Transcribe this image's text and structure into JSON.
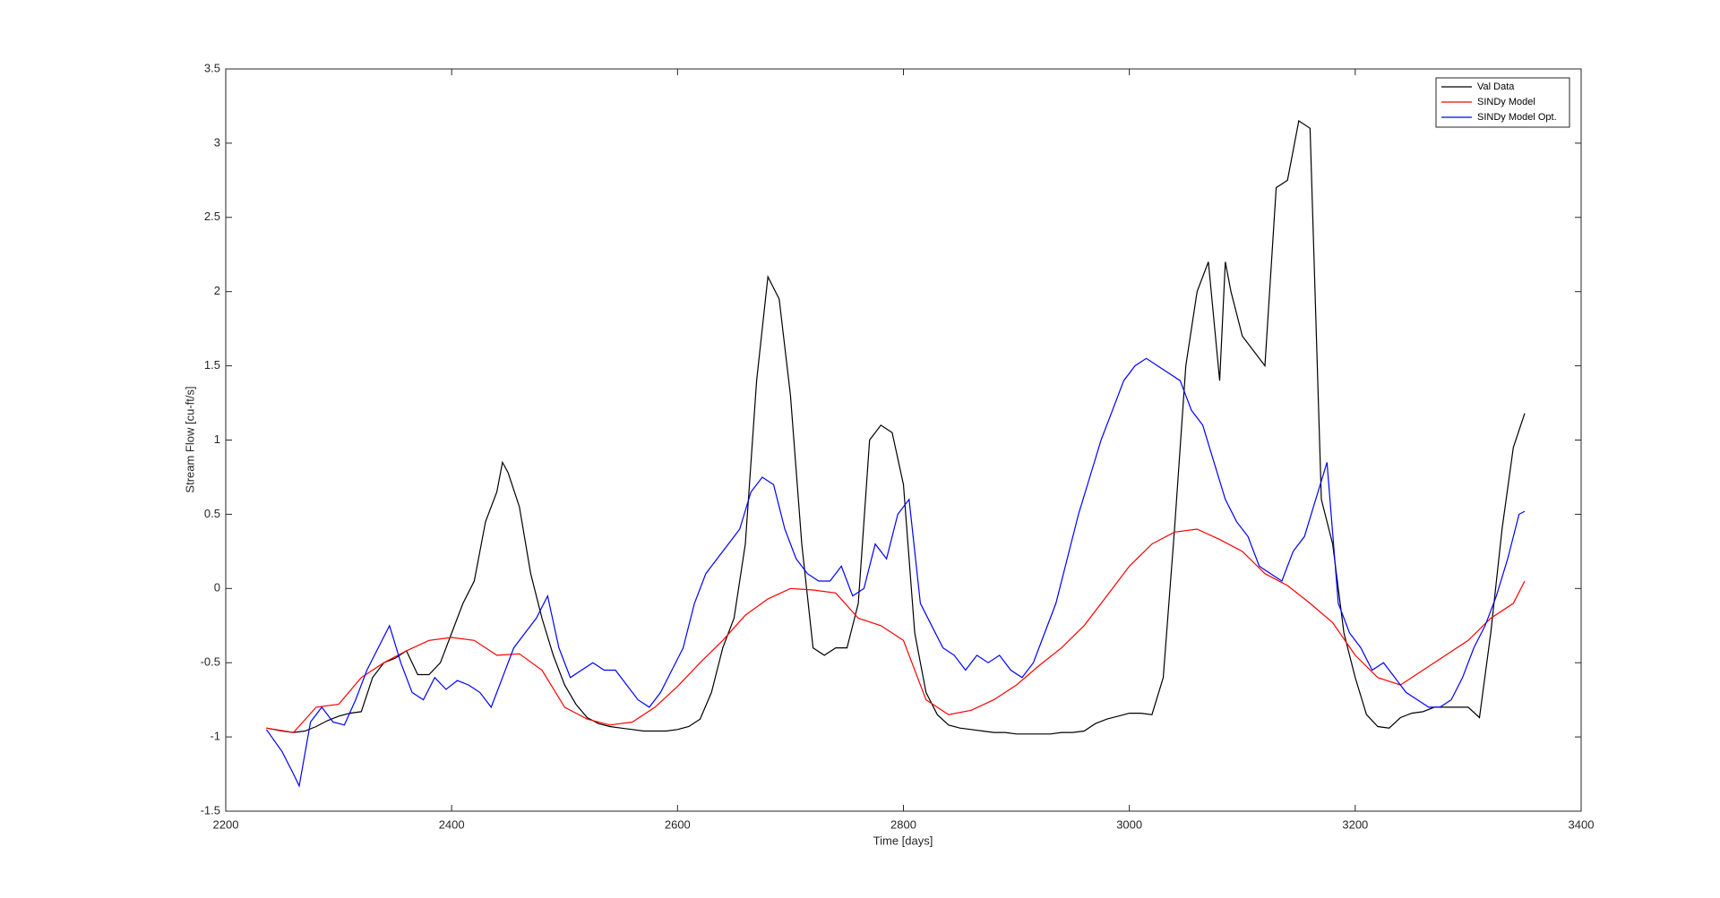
{
  "chart_data": {
    "type": "line",
    "xlabel": "Time [days]",
    "ylabel": "Stream Flow [cu-ft/s]",
    "xlim": [
      2200,
      3400
    ],
    "xticks": [
      2200,
      2400,
      2600,
      2800,
      3000,
      3200,
      3400
    ],
    "ylim": [
      -1.5,
      3.5
    ],
    "yticks": [
      -1.5,
      -1,
      -0.5,
      0,
      0.5,
      1,
      1.5,
      2,
      2.5,
      3,
      3.5
    ],
    "legend": "upper right",
    "grid": false,
    "series": [
      {
        "name": "Val Data",
        "color": "#000000",
        "x": [
          2236,
          2250,
          2260,
          2270,
          2280,
          2290,
          2300,
          2310,
          2320,
          2330,
          2340,
          2350,
          2360,
          2370,
          2380,
          2390,
          2400,
          2410,
          2420,
          2430,
          2440,
          2445,
          2450,
          2460,
          2470,
          2480,
          2490,
          2500,
          2510,
          2520,
          2530,
          2540,
          2550,
          2560,
          2570,
          2580,
          2590,
          2600,
          2610,
          2620,
          2630,
          2640,
          2650,
          2660,
          2670,
          2680,
          2690,
          2700,
          2710,
          2720,
          2730,
          2740,
          2750,
          2760,
          2770,
          2780,
          2790,
          2800,
          2810,
          2820,
          2830,
          2840,
          2850,
          2860,
          2870,
          2880,
          2890,
          2900,
          2910,
          2920,
          2930,
          2940,
          2950,
          2960,
          2970,
          2980,
          2990,
          3000,
          3010,
          3020,
          3030,
          3040,
          3050,
          3060,
          3070,
          3080,
          3085,
          3090,
          3100,
          3110,
          3120,
          3130,
          3140,
          3150,
          3160,
          3170,
          3180,
          3190,
          3200,
          3210,
          3220,
          3230,
          3240,
          3250,
          3260,
          3270,
          3280,
          3290,
          3300,
          3310,
          3320,
          3330,
          3340,
          3350
        ],
        "values": [
          -0.94,
          -0.96,
          -0.97,
          -0.96,
          -0.93,
          -0.89,
          -0.86,
          -0.84,
          -0.83,
          -0.6,
          -0.5,
          -0.47,
          -0.42,
          -0.58,
          -0.58,
          -0.5,
          -0.3,
          -0.1,
          0.05,
          0.45,
          0.65,
          0.85,
          0.78,
          0.55,
          0.1,
          -0.2,
          -0.45,
          -0.65,
          -0.78,
          -0.87,
          -0.91,
          -0.93,
          -0.94,
          -0.95,
          -0.96,
          -0.96,
          -0.96,
          -0.95,
          -0.93,
          -0.88,
          -0.7,
          -0.4,
          -0.2,
          0.3,
          1.4,
          2.1,
          1.95,
          1.3,
          0.3,
          -0.4,
          -0.45,
          -0.4,
          -0.4,
          -0.1,
          1.0,
          1.1,
          1.05,
          0.7,
          -0.3,
          -0.7,
          -0.85,
          -0.92,
          -0.94,
          -0.95,
          -0.96,
          -0.97,
          -0.97,
          -0.98,
          -0.98,
          -0.98,
          -0.98,
          -0.97,
          -0.97,
          -0.96,
          -0.91,
          -0.88,
          -0.86,
          -0.84,
          -0.84,
          -0.85,
          -0.6,
          0.4,
          1.5,
          2.0,
          2.2,
          1.4,
          2.2,
          2.0,
          1.7,
          1.6,
          1.5,
          2.7,
          2.75,
          3.15,
          3.1,
          0.6,
          0.3,
          -0.3,
          -0.6,
          -0.85,
          -0.93,
          -0.94,
          -0.87,
          -0.84,
          -0.83,
          -0.8,
          -0.8,
          -0.8,
          -0.8,
          -0.87,
          -0.3,
          0.4,
          0.95,
          1.18
        ]
      },
      {
        "name": "SINDy Model",
        "color": "#ff0000",
        "x": [
          2236,
          2260,
          2280,
          2300,
          2320,
          2340,
          2360,
          2380,
          2400,
          2420,
          2440,
          2460,
          2480,
          2500,
          2520,
          2540,
          2560,
          2580,
          2600,
          2620,
          2640,
          2660,
          2680,
          2700,
          2720,
          2740,
          2760,
          2780,
          2800,
          2820,
          2840,
          2860,
          2880,
          2900,
          2920,
          2940,
          2960,
          2980,
          3000,
          3020,
          3040,
          3060,
          3080,
          3100,
          3120,
          3140,
          3160,
          3180,
          3200,
          3220,
          3240,
          3260,
          3280,
          3300,
          3320,
          3340,
          3350
        ],
        "values": [
          -0.94,
          -0.97,
          -0.8,
          -0.78,
          -0.6,
          -0.5,
          -0.42,
          -0.35,
          -0.33,
          -0.35,
          -0.45,
          -0.44,
          -0.55,
          -0.8,
          -0.88,
          -0.92,
          -0.9,
          -0.8,
          -0.66,
          -0.5,
          -0.35,
          -0.18,
          -0.07,
          0.0,
          -0.01,
          -0.03,
          -0.2,
          -0.25,
          -0.35,
          -0.75,
          -0.85,
          -0.82,
          -0.75,
          -0.65,
          -0.52,
          -0.4,
          -0.25,
          -0.05,
          0.15,
          0.3,
          0.38,
          0.4,
          0.33,
          0.25,
          0.1,
          0.02,
          -0.1,
          -0.23,
          -0.45,
          -0.6,
          -0.65,
          -0.55,
          -0.45,
          -0.35,
          -0.2,
          -0.1,
          0.05
        ]
      },
      {
        "name": "SINDy Model Opt.",
        "color": "#0000ff",
        "x": [
          2236,
          2250,
          2260,
          2265,
          2275,
          2285,
          2295,
          2305,
          2315,
          2325,
          2335,
          2345,
          2355,
          2365,
          2375,
          2385,
          2395,
          2405,
          2415,
          2425,
          2435,
          2445,
          2455,
          2465,
          2475,
          2485,
          2495,
          2505,
          2515,
          2525,
          2535,
          2545,
          2555,
          2565,
          2575,
          2585,
          2595,
          2605,
          2615,
          2625,
          2635,
          2645,
          2655,
          2665,
          2675,
          2685,
          2695,
          2705,
          2715,
          2725,
          2735,
          2745,
          2755,
          2765,
          2775,
          2785,
          2795,
          2805,
          2815,
          2825,
          2835,
          2845,
          2855,
          2865,
          2875,
          2885,
          2895,
          2905,
          2915,
          2925,
          2935,
          2945,
          2955,
          2965,
          2975,
          2985,
          2995,
          3005,
          3015,
          3025,
          3035,
          3045,
          3055,
          3065,
          3075,
          3085,
          3095,
          3105,
          3115,
          3125,
          3135,
          3145,
          3155,
          3165,
          3175,
          3185,
          3195,
          3205,
          3215,
          3225,
          3235,
          3245,
          3255,
          3265,
          3275,
          3285,
          3295,
          3305,
          3315,
          3325,
          3335,
          3345,
          3350
        ],
        "values": [
          -0.95,
          -1.1,
          -1.25,
          -1.33,
          -0.9,
          -0.8,
          -0.9,
          -0.92,
          -0.75,
          -0.55,
          -0.4,
          -0.25,
          -0.5,
          -0.7,
          -0.75,
          -0.6,
          -0.68,
          -0.62,
          -0.65,
          -0.7,
          -0.8,
          -0.6,
          -0.4,
          -0.3,
          -0.2,
          -0.05,
          -0.4,
          -0.6,
          -0.55,
          -0.5,
          -0.55,
          -0.55,
          -0.65,
          -0.75,
          -0.8,
          -0.7,
          -0.55,
          -0.4,
          -0.1,
          0.1,
          0.2,
          0.3,
          0.4,
          0.65,
          0.75,
          0.7,
          0.4,
          0.2,
          0.1,
          0.05,
          0.05,
          0.15,
          -0.05,
          0.0,
          0.3,
          0.2,
          0.5,
          0.6,
          -0.1,
          -0.25,
          -0.4,
          -0.45,
          -0.55,
          -0.45,
          -0.5,
          -0.45,
          -0.55,
          -0.6,
          -0.5,
          -0.3,
          -0.1,
          0.2,
          0.5,
          0.75,
          1.0,
          1.2,
          1.4,
          1.5,
          1.55,
          1.5,
          1.45,
          1.4,
          1.2,
          1.1,
          0.85,
          0.6,
          0.45,
          0.35,
          0.15,
          0.1,
          0.05,
          0.25,
          0.35,
          0.6,
          0.85,
          -0.1,
          -0.3,
          -0.4,
          -0.55,
          -0.5,
          -0.6,
          -0.7,
          -0.75,
          -0.8,
          -0.8,
          -0.75,
          -0.6,
          -0.4,
          -0.25,
          -0.05,
          0.2,
          0.5,
          0.52
        ]
      }
    ]
  }
}
